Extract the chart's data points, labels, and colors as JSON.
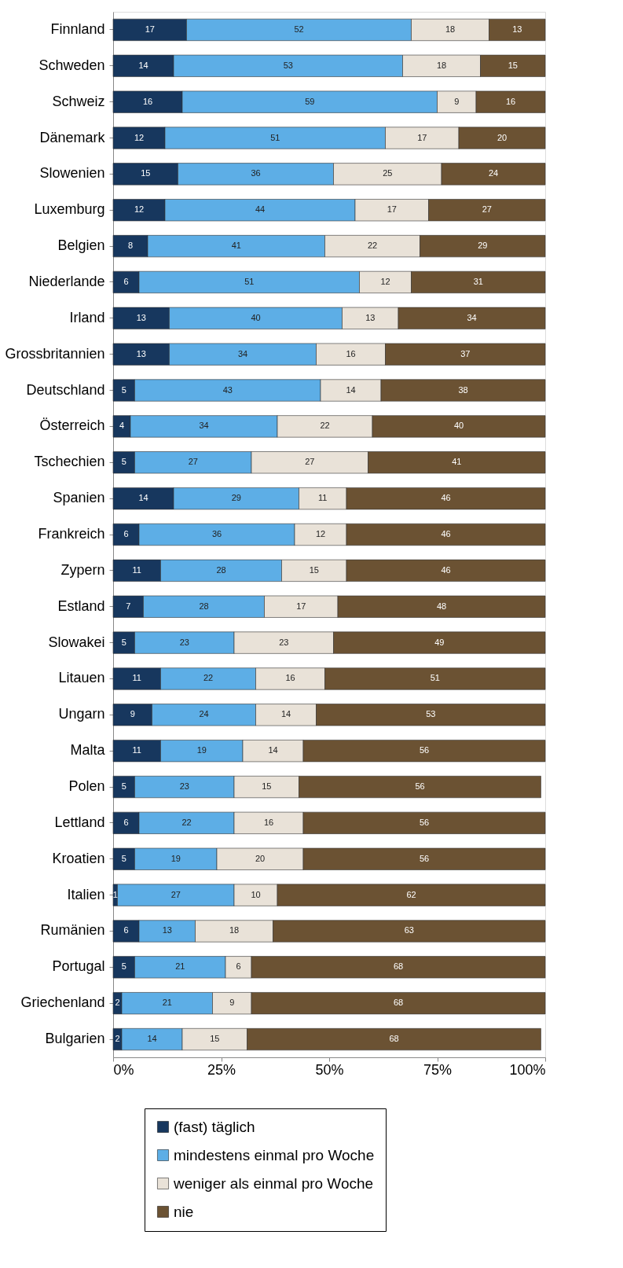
{
  "chart_data": {
    "type": "bar",
    "orientation": "horizontal",
    "stacked": true,
    "data_labels": true,
    "grid": false,
    "legend": "bottom",
    "categories": [
      "Finnland",
      "Schweden",
      "Schweiz",
      "Dänemark",
      "Slowenien",
      "Luxemburg",
      "Belgien",
      "Niederlande",
      "Irland",
      "Grossbritannien",
      "Deutschland",
      "Österreich",
      "Tschechien",
      "Spanien",
      "Frankreich",
      "Zypern",
      "Estland",
      "Slowakei",
      "Litauen",
      "Ungarn",
      "Malta",
      "Polen",
      "Lettland",
      "Kroatien",
      "Italien",
      "Rumänien",
      "Portugal",
      "Griechenland",
      "Bulgarien"
    ],
    "xlim": [
      0,
      100
    ],
    "xticks": [
      {
        "value": 0,
        "label": "0%"
      },
      {
        "value": 25,
        "label": "25%"
      },
      {
        "value": 50,
        "label": "50%"
      },
      {
        "value": 75,
        "label": "75%"
      },
      {
        "value": 100,
        "label": "100%"
      }
    ],
    "series": [
      {
        "name": "(fast) täglich",
        "color": "#17375e",
        "values": [
          17,
          14,
          16,
          12,
          15,
          12,
          8,
          6,
          13,
          13,
          5,
          4,
          5,
          14,
          6,
          11,
          7,
          5,
          11,
          9,
          11,
          5,
          6,
          5,
          1,
          6,
          5,
          2,
          2
        ]
      },
      {
        "name": "mindestens einmal pro Woche",
        "color": "#5daee6",
        "values": [
          52,
          53,
          59,
          51,
          36,
          44,
          41,
          51,
          40,
          34,
          43,
          34,
          27,
          29,
          36,
          28,
          28,
          23,
          22,
          24,
          19,
          23,
          22,
          19,
          27,
          13,
          21,
          21,
          14
        ]
      },
      {
        "name": "weniger als einmal pro Woche",
        "color": "#e9e2d8",
        "values": [
          18,
          18,
          9,
          17,
          25,
          17,
          22,
          12,
          13,
          16,
          14,
          22,
          27,
          11,
          12,
          15,
          17,
          23,
          16,
          14,
          14,
          15,
          16,
          20,
          10,
          18,
          6,
          9,
          15
        ]
      },
      {
        "name": "nie",
        "color": "#6b5233",
        "values": [
          13,
          15,
          16,
          20,
          24,
          27,
          29,
          31,
          34,
          37,
          38,
          40,
          41,
          46,
          46,
          46,
          48,
          49,
          51,
          53,
          56,
          56,
          56,
          56,
          62,
          63,
          68,
          68,
          68
        ]
      }
    ]
  }
}
